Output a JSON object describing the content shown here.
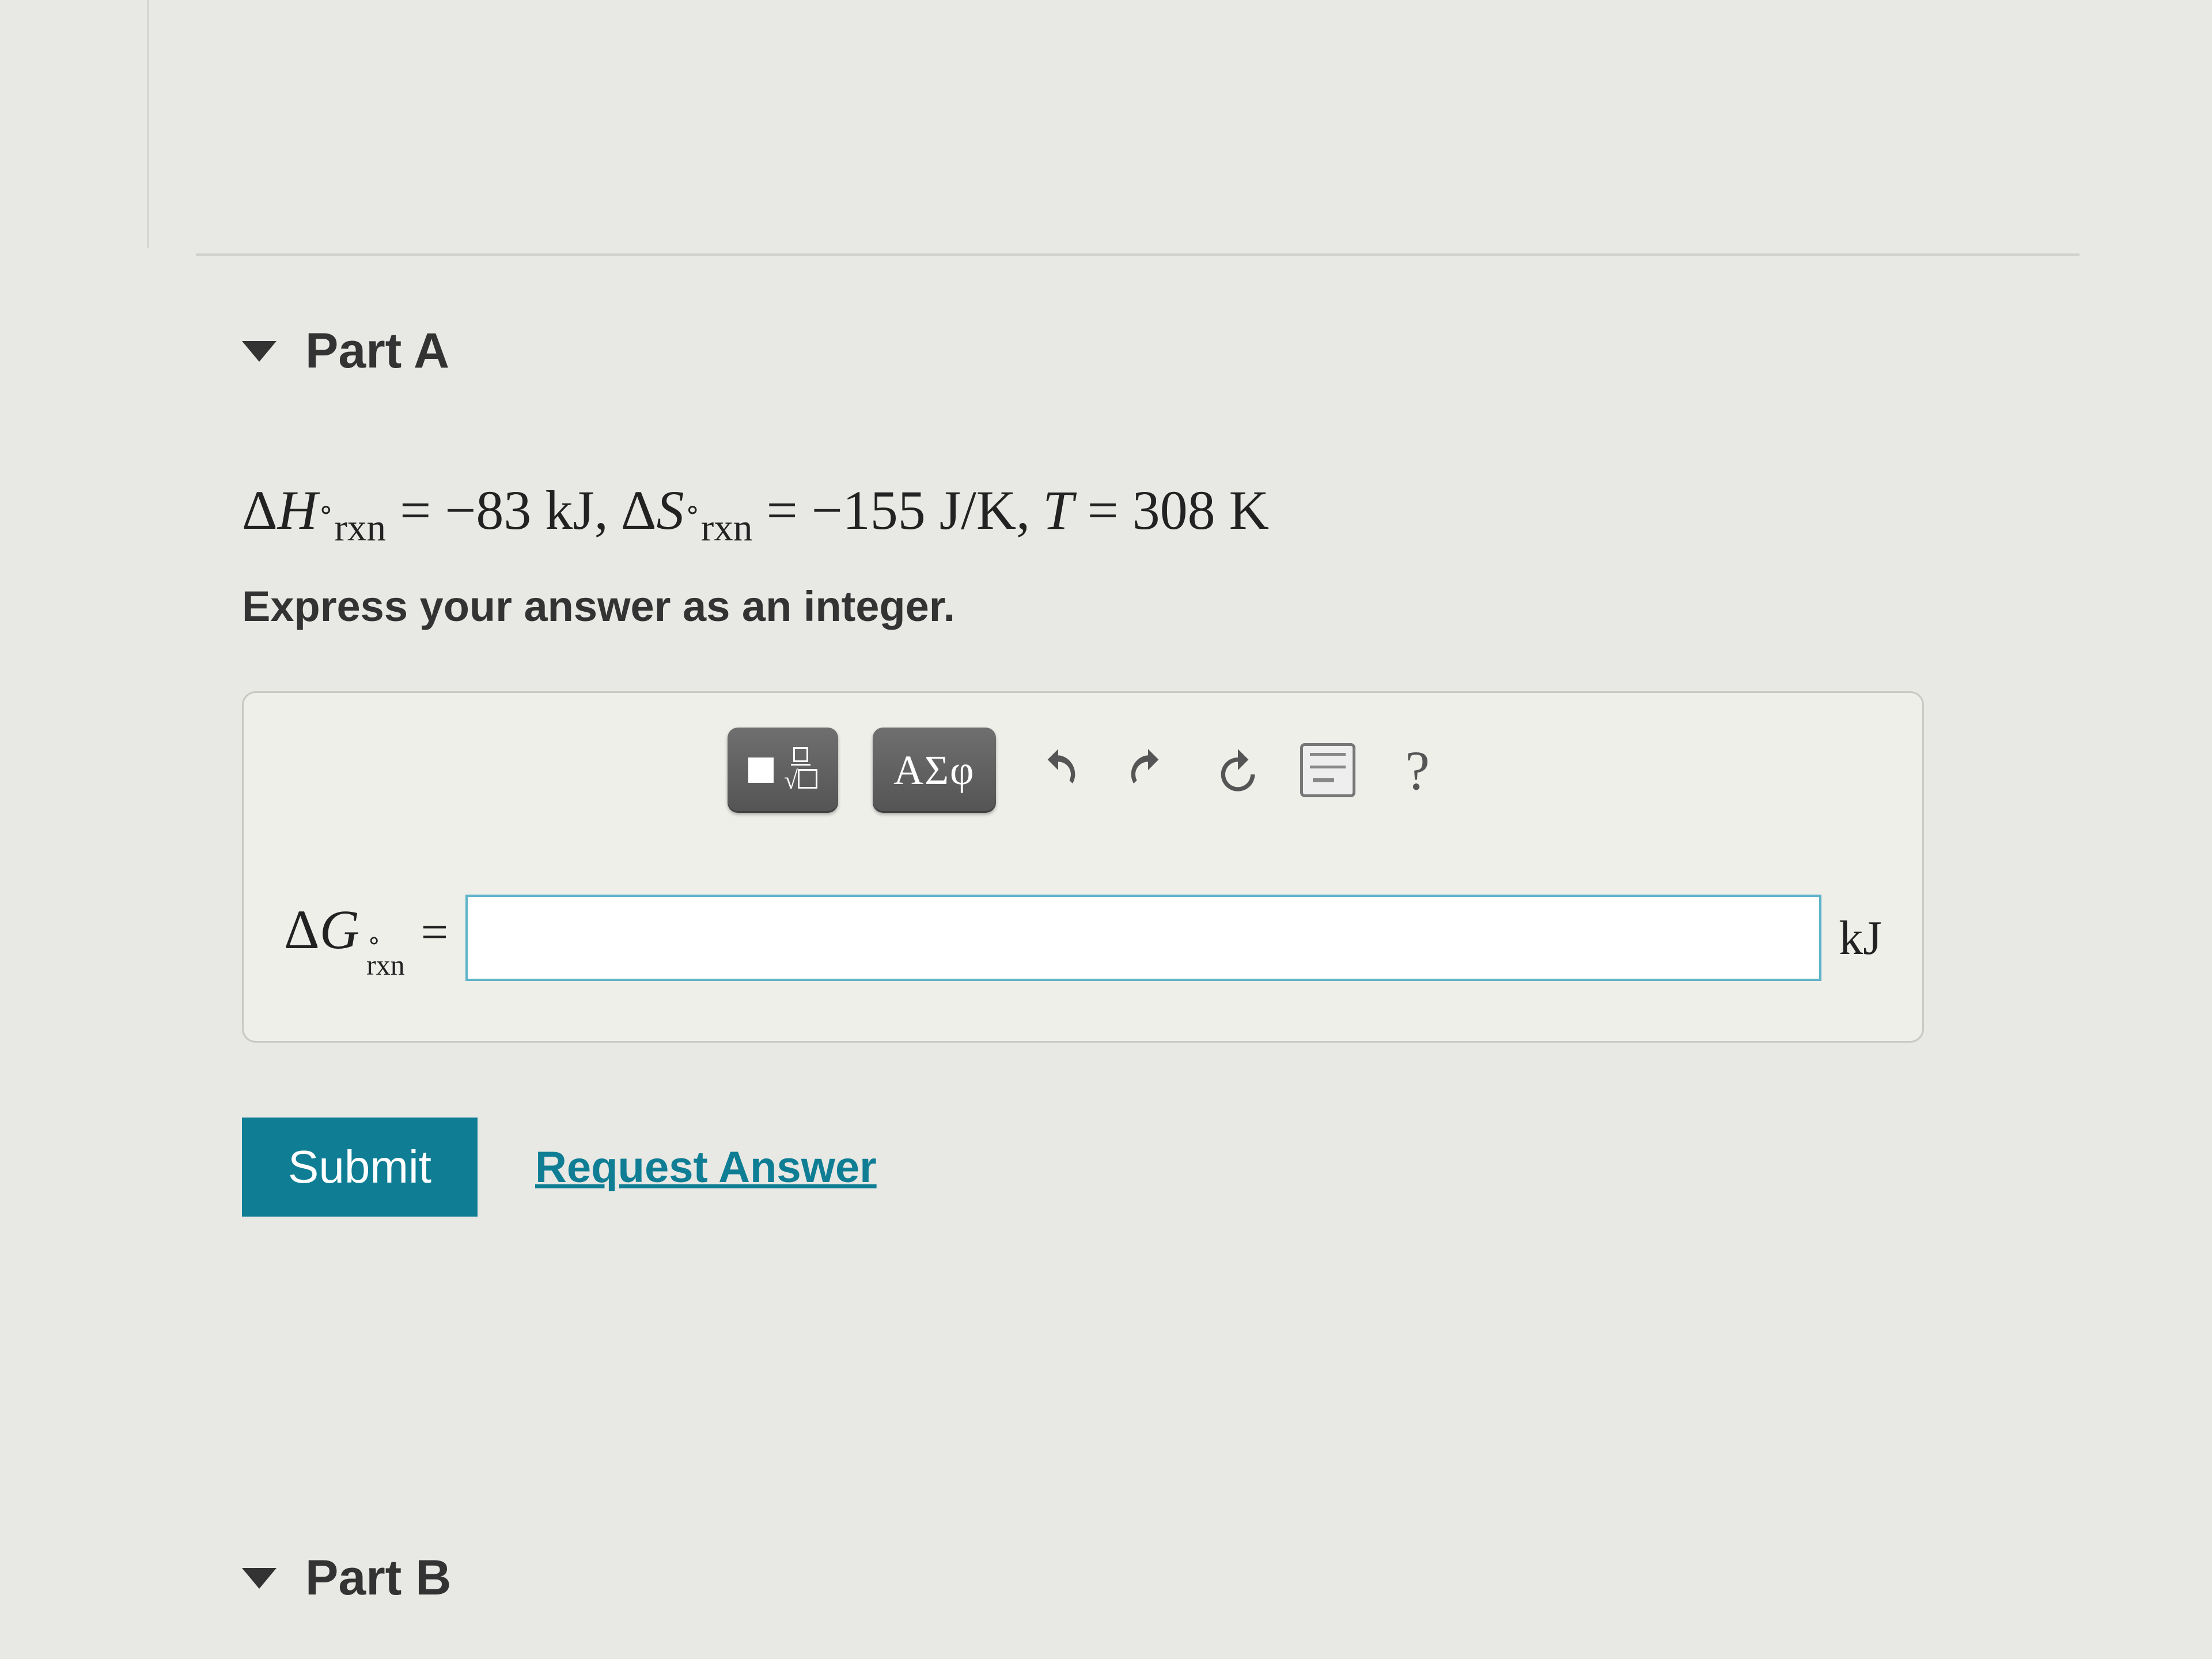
{
  "partA": {
    "title": "Part A",
    "given_html": "Δ<span class='it'>H</span><span class='sub'><span style='font-size:0.7em;vertical-align:0.8em'>∘</span>rxn</span> = −83 kJ,<span class='sp'></span>Δ<span class='it'>S</span><span class='sub'><span style='font-size:0.7em;vertical-align:0.8em'>∘</span>rxn</span> = −155 J/K,<span class='sp'></span><span class='it'>T</span> = 308 K",
    "hint": "Express your answer as an integer.",
    "toolbar": {
      "greek_label": "ΑΣφ",
      "help_label": "?"
    },
    "answer": {
      "prefix_delta": "Δ",
      "prefix_G": "G",
      "prefix_circ": "∘",
      "prefix_rxn": "rxn",
      "eq": "=",
      "value": "",
      "unit": "kJ"
    },
    "submit_label": "Submit",
    "request_label": "Request Answer"
  },
  "partB": {
    "title": "Part B"
  },
  "colors": {
    "background": "#e8e8e4",
    "accent": "#0f7e95",
    "input_border": "#5fb4c9",
    "toolbar_dark": "#5a5a5a"
  }
}
